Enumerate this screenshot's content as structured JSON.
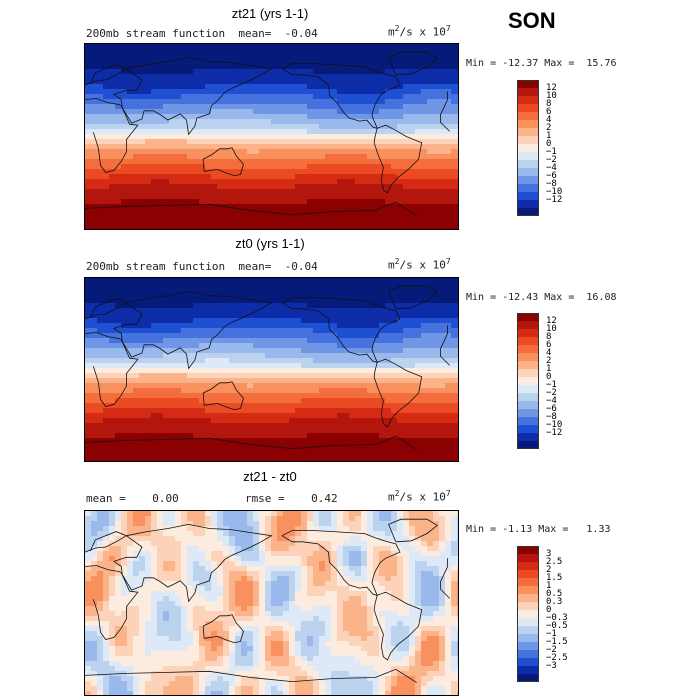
{
  "season": "SON",
  "panels": [
    {
      "title": "zt21 (yrs 1-1)",
      "subtitle": "200mb stream function  mean=  -0.04",
      "unit_base": "m",
      "unit_exp1": "2",
      "unit_mid": "/s x 10",
      "unit_exp2": "7",
      "minmax": "Min = -12.37 Max =  15.76",
      "colorbar": {
        "labels": [
          "12",
          "10",
          "8",
          "6",
          "4",
          "2",
          "1",
          "0",
          "−1",
          "−2",
          "−4",
          "−6",
          "−8",
          "−10",
          "−12"
        ],
        "colors": [
          "#8b0000",
          "#b2160c",
          "#d52b14",
          "#ea4b22",
          "#f46d3c",
          "#f8915e",
          "#fbb38a",
          "#fcd3b8",
          "#fbecdf",
          "#dde9f6",
          "#bcd3f0",
          "#99b9ec",
          "#6f97e5",
          "#4572df",
          "#1f4fd2",
          "#0c2ca8",
          "#061a7a"
        ]
      },
      "field": "streamA"
    },
    {
      "title": "zt0 (yrs 1-1)",
      "subtitle": "200mb stream function  mean=  -0.04",
      "unit_base": "m",
      "unit_exp1": "2",
      "unit_mid": "/s x 10",
      "unit_exp2": "7",
      "minmax": "Min = -12.43 Max =  16.08",
      "colorbar": {
        "labels": [
          "12",
          "10",
          "8",
          "6",
          "4",
          "2",
          "1",
          "0",
          "−1",
          "−2",
          "−4",
          "−6",
          "−8",
          "−10",
          "−12"
        ],
        "colors": [
          "#8b0000",
          "#b2160c",
          "#d52b14",
          "#ea4b22",
          "#f46d3c",
          "#f8915e",
          "#fbb38a",
          "#fcd3b8",
          "#fbecdf",
          "#dde9f6",
          "#bcd3f0",
          "#99b9ec",
          "#6f97e5",
          "#4572df",
          "#1f4fd2",
          "#0c2ca8",
          "#061a7a"
        ]
      },
      "field": "streamB"
    },
    {
      "title": "zt21 - zt0",
      "subtitle": "mean =    0.00          rmse =    0.42",
      "unit_base": "m",
      "unit_exp1": "2",
      "unit_mid": "/s x 10",
      "unit_exp2": "7",
      "minmax": "Min = -1.13 Max =   1.33",
      "colorbar": {
        "labels": [
          "3",
          "2.5",
          "2",
          "1.5",
          "1",
          "0.5",
          "0.3",
          "0",
          "−0.3",
          "−0.5",
          "−1",
          "−1.5",
          "−2",
          "−2.5",
          "−3"
        ],
        "colors": [
          "#8b0000",
          "#b2160c",
          "#d52b14",
          "#ea4b22",
          "#f46d3c",
          "#f8915e",
          "#fbb38a",
          "#fcd3b8",
          "#fbecdf",
          "#dde9f6",
          "#bcd3f0",
          "#99b9ec",
          "#6f97e5",
          "#4572df",
          "#1f4fd2",
          "#0c2ca8",
          "#061a7a"
        ]
      },
      "field": "diff"
    }
  ]
}
